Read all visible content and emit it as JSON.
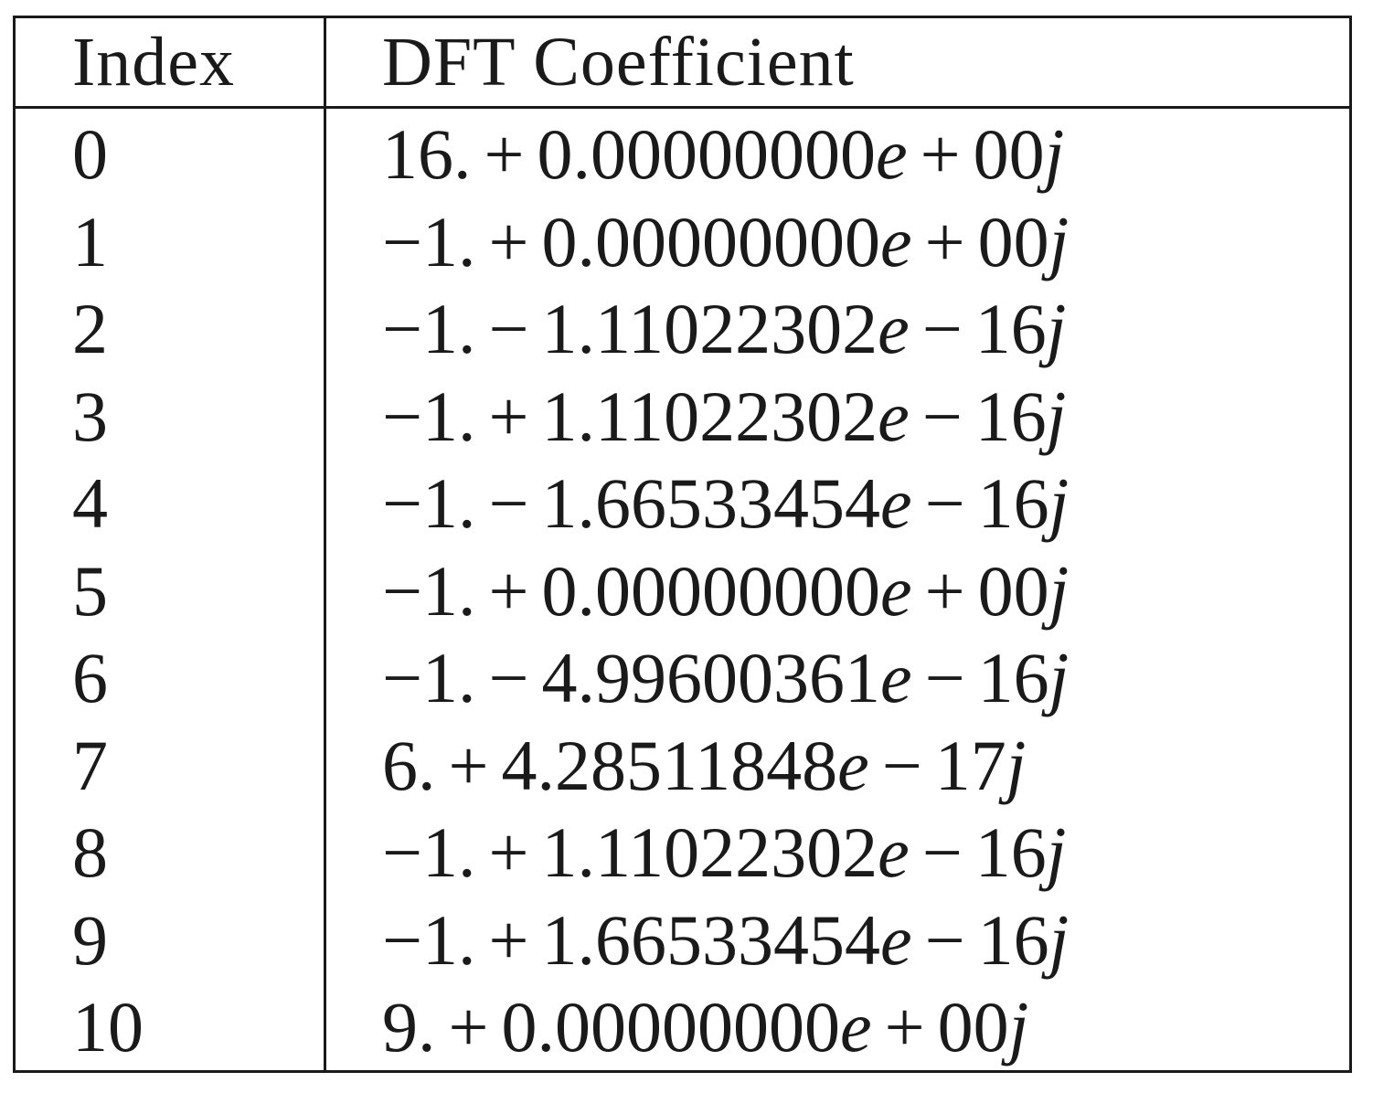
{
  "chart_data": {
    "type": "table",
    "columns": [
      "Index",
      "DFT Coefficient"
    ],
    "rows": [
      {
        "index": "0",
        "real": "16.",
        "op1": "+",
        "mantissa": "0.00000000",
        "op2": "+",
        "exp": "00"
      },
      {
        "index": "1",
        "real": "−1.",
        "op1": "+",
        "mantissa": "0.00000000",
        "op2": "+",
        "exp": "00"
      },
      {
        "index": "2",
        "real": "−1.",
        "op1": "−",
        "mantissa": "1.11022302",
        "op2": "−",
        "exp": "16"
      },
      {
        "index": "3",
        "real": "−1.",
        "op1": "+",
        "mantissa": "1.11022302",
        "op2": "−",
        "exp": "16"
      },
      {
        "index": "4",
        "real": "−1.",
        "op1": "−",
        "mantissa": "1.66533454",
        "op2": "−",
        "exp": "16"
      },
      {
        "index": "5",
        "real": "−1.",
        "op1": "+",
        "mantissa": "0.00000000",
        "op2": "+",
        "exp": "00"
      },
      {
        "index": "6",
        "real": "−1.",
        "op1": "−",
        "mantissa": "4.99600361",
        "op2": "−",
        "exp": "16"
      },
      {
        "index": "7",
        "real": "6.",
        "op1": "+",
        "mantissa": "4.28511848",
        "op2": "−",
        "exp": "17"
      },
      {
        "index": "8",
        "real": "−1.",
        "op1": "+",
        "mantissa": "1.11022302",
        "op2": "−",
        "exp": "16"
      },
      {
        "index": "9",
        "real": "−1.",
        "op1": "+",
        "mantissa": "1.66533454",
        "op2": "−",
        "exp": "16"
      },
      {
        "index": "10",
        "real": "9.",
        "op1": "+",
        "mantissa": "0.00000000",
        "op2": "+",
        "exp": "00"
      }
    ]
  },
  "symbols": {
    "exp_char": "e",
    "imag_unit": "j"
  }
}
